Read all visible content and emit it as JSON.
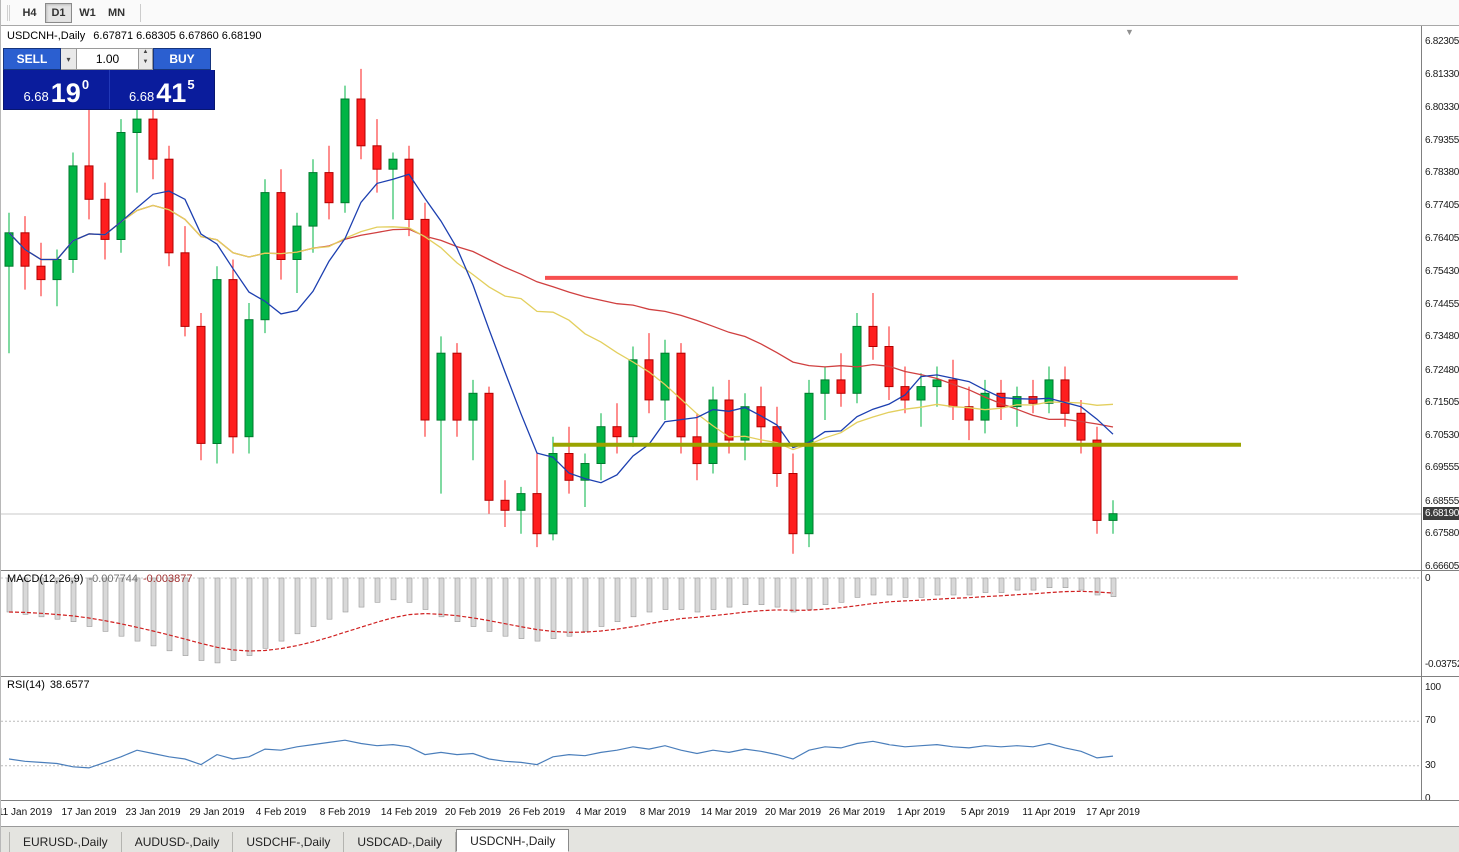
{
  "toolbar": {
    "timeframes": [
      {
        "label": "H4",
        "active": false
      },
      {
        "label": "D1",
        "active": true
      },
      {
        "label": "W1",
        "active": false
      },
      {
        "label": "MN",
        "active": false
      }
    ]
  },
  "header": {
    "symbol": "USDCNH-,Daily",
    "ohlc": "6.67871 6.68305 6.67860 6.68190"
  },
  "trade_panel": {
    "sell_label": "SELL",
    "buy_label": "BUY",
    "volume": "1.00",
    "sell_price": {
      "small": "6.68",
      "big": "19",
      "sup": "0"
    },
    "buy_price": {
      "small": "6.68",
      "big": "41",
      "sup": "5"
    }
  },
  "macd": {
    "label": "MACD(12,26,9)",
    "value1": "-0.007744",
    "value2": "-0.003877",
    "axis_top": "0",
    "axis_bottom": "-0.03752"
  },
  "rsi": {
    "label": "RSI(14)",
    "value": "38.6577",
    "axis": [
      "100",
      "70",
      "30",
      "0"
    ]
  },
  "bottom_tabs": [
    {
      "label": "EURUSD-,Daily",
      "active": false
    },
    {
      "label": "AUDUSD-,Daily",
      "active": false
    },
    {
      "label": "USDCHF-,Daily",
      "active": false
    },
    {
      "label": "USDCAD-,Daily",
      "active": false
    },
    {
      "label": "USDCNH-,Daily",
      "active": true
    }
  ],
  "chart_data": {
    "type": "candlestick",
    "symbol": "USDCNH",
    "timeframe": "Daily",
    "price_range": [
      6.66605,
      6.82305
    ],
    "price_ticks": [
      "6.82305",
      "6.81330",
      "6.80330",
      "6.79355",
      "6.78380",
      "6.77405",
      "6.76405",
      "6.75430",
      "6.74455",
      "6.73480",
      "6.72480",
      "6.71505",
      "6.70530",
      "6.69555",
      "6.68555",
      "6.67580",
      "6.66605"
    ],
    "current_price": 6.6819,
    "current_price_label": "6.68190",
    "candle_colors": {
      "bull": "#00b445",
      "bull_border": "#007a2e",
      "bear": "#fe1e1e",
      "bear_border": "#b00000"
    },
    "ohlc": [
      [
        6.756,
        6.772,
        6.73,
        6.766
      ],
      [
        6.766,
        6.771,
        6.749,
        6.756
      ],
      [
        6.756,
        6.763,
        6.747,
        6.752
      ],
      [
        6.752,
        6.761,
        6.744,
        6.758
      ],
      [
        6.758,
        6.79,
        6.754,
        6.786
      ],
      [
        6.786,
        6.812,
        6.77,
        6.776
      ],
      [
        6.776,
        6.781,
        6.758,
        6.764
      ],
      [
        6.764,
        6.8,
        6.76,
        6.796
      ],
      [
        6.796,
        6.808,
        6.778,
        6.8
      ],
      [
        6.8,
        6.805,
        6.782,
        6.788
      ],
      [
        6.788,
        6.792,
        6.756,
        6.76
      ],
      [
        6.76,
        6.768,
        6.735,
        6.738
      ],
      [
        6.738,
        6.742,
        6.698,
        6.703
      ],
      [
        6.703,
        6.756,
        6.697,
        6.752
      ],
      [
        6.752,
        6.758,
        6.7,
        6.705
      ],
      [
        6.705,
        6.745,
        6.7,
        6.74
      ],
      [
        6.74,
        6.782,
        6.736,
        6.778
      ],
      [
        6.778,
        6.785,
        6.752,
        6.758
      ],
      [
        6.758,
        6.772,
        6.748,
        6.768
      ],
      [
        6.768,
        6.788,
        6.76,
        6.784
      ],
      [
        6.784,
        6.792,
        6.77,
        6.775
      ],
      [
        6.775,
        6.81,
        6.772,
        6.806
      ],
      [
        6.806,
        6.815,
        6.788,
        6.792
      ],
      [
        6.792,
        6.8,
        6.778,
        6.785
      ],
      [
        6.785,
        6.79,
        6.77,
        6.788
      ],
      [
        6.788,
        6.792,
        6.765,
        6.77
      ],
      [
        6.77,
        6.775,
        6.705,
        6.71
      ],
      [
        6.71,
        6.735,
        6.688,
        6.73
      ],
      [
        6.73,
        6.733,
        6.705,
        6.71
      ],
      [
        6.71,
        6.722,
        6.698,
        6.718
      ],
      [
        6.718,
        6.72,
        6.682,
        6.686
      ],
      [
        6.686,
        6.692,
        6.678,
        6.683
      ],
      [
        6.683,
        6.69,
        6.676,
        6.688
      ],
      [
        6.688,
        6.7,
        6.672,
        6.676
      ],
      [
        6.676,
        6.705,
        6.674,
        6.7
      ],
      [
        6.7,
        6.708,
        6.688,
        6.692
      ],
      [
        6.692,
        6.7,
        6.684,
        6.697
      ],
      [
        6.697,
        6.712,
        6.692,
        6.708
      ],
      [
        6.708,
        6.715,
        6.7,
        6.705
      ],
      [
        6.705,
        6.732,
        6.702,
        6.728
      ],
      [
        6.728,
        6.736,
        6.712,
        6.716
      ],
      [
        6.716,
        6.734,
        6.71,
        6.73
      ],
      [
        6.73,
        6.733,
        6.7,
        6.705
      ],
      [
        6.705,
        6.712,
        6.692,
        6.697
      ],
      [
        6.697,
        6.72,
        6.694,
        6.716
      ],
      [
        6.716,
        6.722,
        6.7,
        6.704
      ],
      [
        6.704,
        6.718,
        6.698,
        6.714
      ],
      [
        6.714,
        6.72,
        6.702,
        6.708
      ],
      [
        6.708,
        6.714,
        6.69,
        6.694
      ],
      [
        6.694,
        6.7,
        6.67,
        6.676
      ],
      [
        6.676,
        6.722,
        6.672,
        6.718
      ],
      [
        6.718,
        6.726,
        6.71,
        6.722
      ],
      [
        6.722,
        6.73,
        6.714,
        6.718
      ],
      [
        6.718,
        6.742,
        6.715,
        6.738
      ],
      [
        6.738,
        6.748,
        6.728,
        6.732
      ],
      [
        6.732,
        6.738,
        6.716,
        6.72
      ],
      [
        6.72,
        6.726,
        6.712,
        6.716
      ],
      [
        6.716,
        6.724,
        6.708,
        6.72
      ],
      [
        6.72,
        6.726,
        6.714,
        6.722
      ],
      [
        6.722,
        6.728,
        6.71,
        6.714
      ],
      [
        6.714,
        6.72,
        6.704,
        6.71
      ],
      [
        6.71,
        6.722,
        6.706,
        6.718
      ],
      [
        6.718,
        6.722,
        6.71,
        6.714
      ],
      [
        6.714,
        6.72,
        6.708,
        6.717
      ],
      [
        6.717,
        6.722,
        6.712,
        6.715
      ],
      [
        6.715,
        6.726,
        6.712,
        6.722
      ],
      [
        6.722,
        6.726,
        6.708,
        6.712
      ],
      [
        6.712,
        6.716,
        6.7,
        6.704
      ],
      [
        6.704,
        6.708,
        6.676,
        6.68
      ],
      [
        6.68,
        6.686,
        6.676,
        6.682
      ]
    ],
    "date_labels": [
      {
        "label": "11 Jan 2019",
        "i": 1
      },
      {
        "label": "17 Jan 2019",
        "i": 5
      },
      {
        "label": "23 Jan 2019",
        "i": 9
      },
      {
        "label": "29 Jan 2019",
        "i": 13
      },
      {
        "label": "4 Feb 2019",
        "i": 17
      },
      {
        "label": "8 Feb 2019",
        "i": 21
      },
      {
        "label": "14 Feb 2019",
        "i": 25
      },
      {
        "label": "20 Feb 2019",
        "i": 29
      },
      {
        "label": "26 Feb 2019",
        "i": 33
      },
      {
        "label": "4 Mar 2019",
        "i": 37
      },
      {
        "label": "8 Mar 2019",
        "i": 41
      },
      {
        "label": "14 Mar 2019",
        "i": 45
      },
      {
        "label": "20 Mar 2019",
        "i": 49
      },
      {
        "label": "26 Mar 2019",
        "i": 53
      },
      {
        "label": "1 Apr 2019",
        "i": 57
      },
      {
        "label": "5 Apr 2019",
        "i": 61
      },
      {
        "label": "11 Apr 2019",
        "i": 65
      },
      {
        "label": "17 Apr 2019",
        "i": 69
      }
    ],
    "moving_averages": [
      {
        "period": 40,
        "color": "#d04040"
      },
      {
        "period": 20,
        "color": "#e3cf5e"
      },
      {
        "period": 8,
        "color": "#1c3fb0"
      }
    ],
    "hlines": [
      {
        "price": 6.7525,
        "from": 33.5,
        "to": 76.8,
        "color": "#f75050",
        "width": 4
      },
      {
        "price": 6.7026,
        "from": 34.0,
        "to": 77.0,
        "color": "#9aa400",
        "width": 4
      }
    ],
    "macd": {
      "range": [
        -0.03752,
        0
      ],
      "signal_period": 9,
      "hist": [
        -0.014,
        -0.015,
        -0.016,
        -0.017,
        -0.018,
        -0.02,
        -0.022,
        -0.024,
        -0.026,
        -0.028,
        -0.03,
        -0.032,
        -0.034,
        -0.035,
        -0.034,
        -0.032,
        -0.029,
        -0.026,
        -0.023,
        -0.02,
        -0.017,
        -0.014,
        -0.012,
        -0.01,
        -0.009,
        -0.01,
        -0.013,
        -0.016,
        -0.018,
        -0.02,
        -0.022,
        -0.024,
        -0.025,
        -0.026,
        -0.025,
        -0.024,
        -0.022,
        -0.02,
        -0.018,
        -0.016,
        -0.014,
        -0.013,
        -0.013,
        -0.014,
        -0.013,
        -0.012,
        -0.011,
        -0.011,
        -0.012,
        -0.014,
        -0.013,
        -0.011,
        -0.01,
        -0.008,
        -0.007,
        -0.007,
        -0.008,
        -0.008,
        -0.007,
        -0.007,
        -0.007,
        -0.006,
        -0.006,
        -0.005,
        -0.005,
        -0.004,
        -0.004,
        -0.005,
        -0.007,
        -0.0077
      ]
    },
    "rsi": {
      "range": [
        0,
        100
      ],
      "levels": [
        70,
        30
      ],
      "values": [
        36,
        34,
        33,
        32,
        29,
        28,
        33,
        38,
        44,
        41,
        38,
        36,
        31,
        40,
        36,
        38,
        45,
        44,
        47,
        49,
        51,
        53,
        50,
        48,
        49,
        47,
        40,
        42,
        40,
        41,
        36,
        34,
        33,
        31,
        38,
        40,
        39,
        42,
        44,
        47,
        45,
        48,
        44,
        41,
        44,
        42,
        45,
        43,
        40,
        36,
        44,
        47,
        46,
        50,
        52,
        49,
        47,
        48,
        49,
        47,
        46,
        48,
        47,
        48,
        47,
        50,
        46,
        43,
        37,
        38.66
      ]
    }
  }
}
